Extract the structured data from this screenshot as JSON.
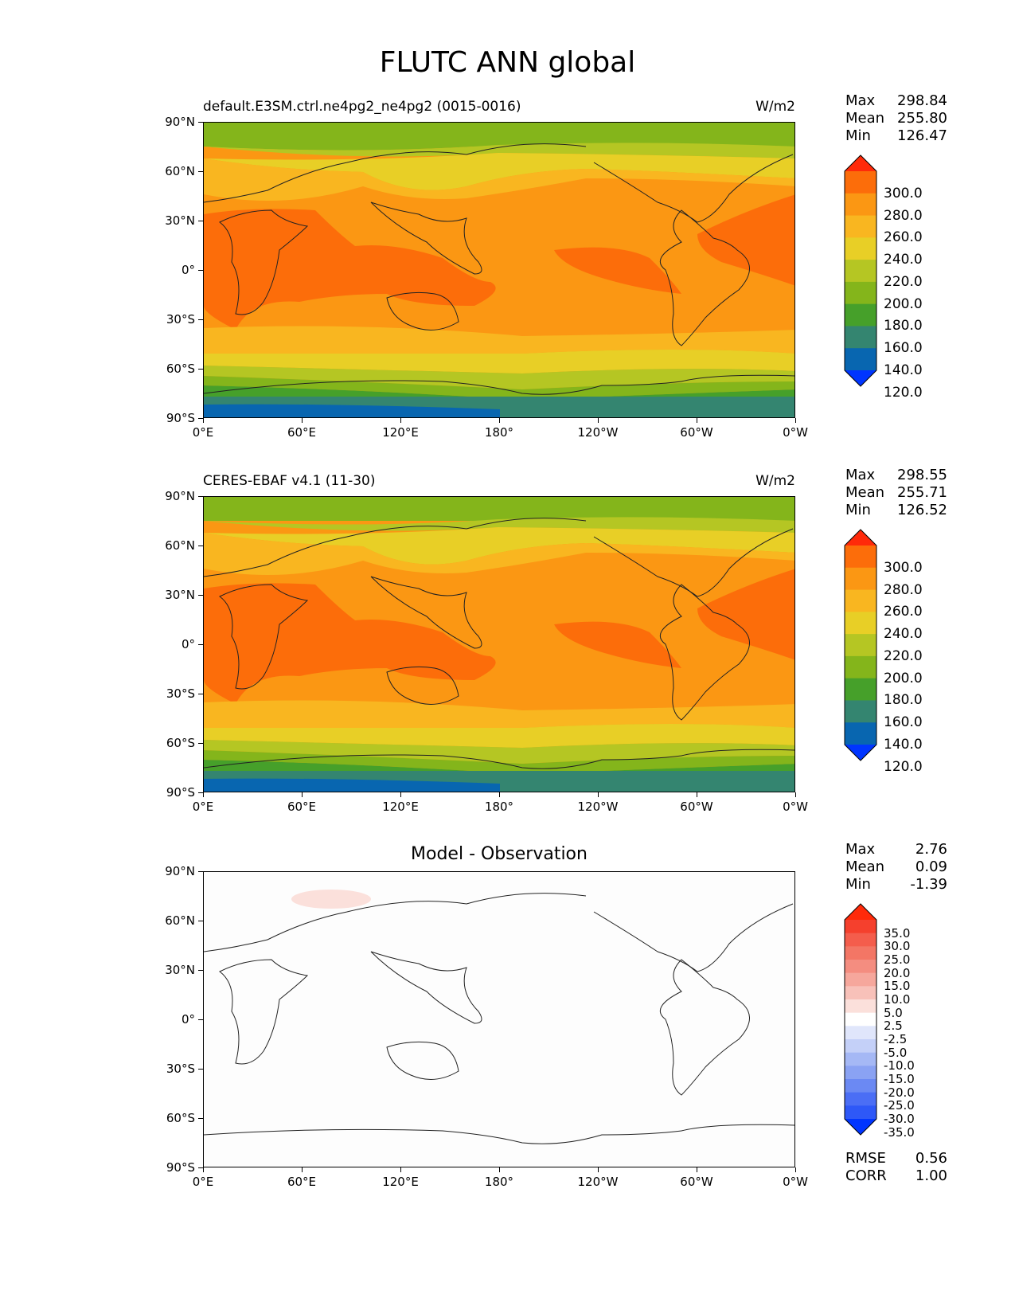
{
  "title": "FLUTC ANN global",
  "panels": [
    {
      "left_title": "default.E3SM.ctrl.ne4pg2_ne4pg2 (0015-0016)",
      "right_title": "W/m2",
      "center_title": "",
      "stats": {
        "max_label": "Max",
        "max": "298.84",
        "mean_label": "Mean",
        "mean": "255.80",
        "min_label": "Min",
        "min": "126.47"
      },
      "colorbar": {
        "labels": [
          "300.0",
          "280.0",
          "260.0",
          "240.0",
          "220.0",
          "200.0",
          "180.0",
          "160.0",
          "140.0",
          "120.0"
        ],
        "colors": [
          "#ff2a0a",
          "#fc6d0a",
          "#fb9713",
          "#f9b620",
          "#e8cf26",
          "#b5c623",
          "#84b51b",
          "#46a02a",
          "#348570",
          "#0866b0",
          "#0035ff"
        ]
      }
    },
    {
      "left_title": "CERES-EBAF v4.1 (11-30)",
      "right_title": "W/m2",
      "center_title": "",
      "stats": {
        "max_label": "Max",
        "max": "298.55",
        "mean_label": "Mean",
        "mean": "255.71",
        "min_label": "Min",
        "min": "126.52"
      },
      "colorbar": {
        "labels": [
          "300.0",
          "280.0",
          "260.0",
          "240.0",
          "220.0",
          "200.0",
          "180.0",
          "160.0",
          "140.0",
          "120.0"
        ],
        "colors": [
          "#ff2a0a",
          "#fc6d0a",
          "#fb9713",
          "#f9b620",
          "#e8cf26",
          "#b5c623",
          "#84b51b",
          "#46a02a",
          "#348570",
          "#0866b0",
          "#0035ff"
        ]
      }
    },
    {
      "left_title": "",
      "right_title": "",
      "center_title": "Model - Observation",
      "stats": {
        "max_label": "Max",
        "max": "2.76",
        "mean_label": "Mean",
        "mean": "0.09",
        "min_label": "Min",
        "min": "-1.39"
      },
      "colorbar": {
        "labels": [
          "35.0",
          "30.0",
          "25.0",
          "20.0",
          "15.0",
          "10.0",
          "5.0",
          "2.5",
          "-2.5",
          "-5.0",
          "-10.0",
          "-15.0",
          "-20.0",
          "-25.0",
          "-30.0",
          "-35.0"
        ],
        "colors": [
          "#ff2a0a",
          "#f5402d",
          "#f45d4c",
          "#f37665",
          "#f48d80",
          "#f6a79c",
          "#f8c1b9",
          "#fbe0db",
          "#ffffff",
          "#e0e6fb",
          "#c4d0f8",
          "#a5b8f5",
          "#8aa2f3",
          "#6b89f3",
          "#4b6ef5",
          "#2e58f7",
          "#0035ff"
        ]
      },
      "metrics": {
        "rmse_label": "RMSE",
        "rmse": "0.56",
        "corr_label": "CORR",
        "corr": "1.00"
      }
    }
  ],
  "axes": {
    "y_ticks": [
      "90°N",
      "60°N",
      "30°N",
      "0°",
      "30°S",
      "60°S",
      "90°S"
    ],
    "x_ticks": [
      "0°E",
      "60°E",
      "120°E",
      "180°",
      "120°W",
      "60°W",
      "0°W"
    ]
  },
  "icons": {
    "map_outline": "coastline-icon"
  }
}
